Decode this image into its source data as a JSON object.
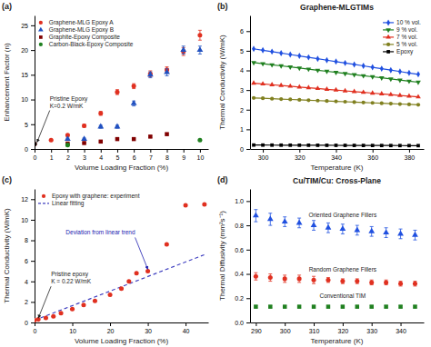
{
  "chart_data": [
    {
      "type": "scatter",
      "label": "(a)",
      "xlabel": "Volume Loading Fraction (%)",
      "ylabel": "Enhancement Factor (n)",
      "xlim": [
        0,
        10.5
      ],
      "ylim": [
        0,
        27
      ],
      "xticks": [
        0,
        1,
        2,
        3,
        4,
        5,
        6,
        7,
        8,
        9,
        10
      ],
      "yticks": [
        0,
        5,
        10,
        15,
        20,
        25
      ],
      "grid": false,
      "legend": "upper left",
      "series": [
        {
          "name": "Graphene-MLG Epoxy A",
          "color": "#e03020",
          "marker": "circle",
          "x": [
            0,
            1,
            2,
            3,
            4,
            5,
            6,
            7,
            8,
            9,
            10
          ],
          "values": [
            1,
            1.8,
            2.8,
            4.7,
            7.2,
            11.5,
            12.7,
            15.2,
            16.0,
            19.7,
            23.0
          ],
          "yerr": [
            0,
            0.15,
            0.2,
            0.3,
            0.4,
            0.5,
            0.5,
            0.6,
            0.6,
            0.8,
            1.0
          ]
        },
        {
          "name": "Graphene-MLG Epoxy B",
          "color": "#2050c0",
          "marker": "triangle",
          "x": [
            2,
            3,
            4,
            5,
            6,
            7,
            8,
            9,
            10
          ],
          "values": [
            2.0,
            2.0,
            4.5,
            4.5,
            9.2,
            15.0,
            15.5,
            20.0,
            20.0
          ],
          "yerr": [
            0.2,
            0.2,
            0.3,
            0.3,
            0.5,
            0.6,
            0.7,
            0.8,
            0.8
          ]
        },
        {
          "name": "Graphite-Epoxy Composite",
          "color": "#800000",
          "marker": "square",
          "x": [
            2,
            3,
            4,
            5,
            6,
            7,
            8
          ],
          "values": [
            1.1,
            1.2,
            1.5,
            2.0,
            2.0,
            2.5,
            3.0
          ],
          "yerr": [
            0.1,
            0.1,
            0.15,
            0.15,
            0.15,
            0.2,
            0.2
          ]
        },
        {
          "name": "Carbon-Black-Epoxy Composite",
          "color": "#208020",
          "marker": "circle",
          "x": [
            2,
            10
          ],
          "values": [
            0.8,
            1.8
          ],
          "yerr": [
            0.1,
            0.15
          ]
        },
        {
          "color": "#000000",
          "marker": "circle",
          "x": [
            0
          ],
          "values": [
            1
          ]
        }
      ],
      "annotations": [
        {
          "text": "Pristine Epoxy\nK=0.2 W/mK",
          "x": 0.15,
          "y": 1.0
        }
      ]
    },
    {
      "type": "line",
      "label": "(b)",
      "title": "Graphene-MLGTIMs",
      "xlabel": "Temperature (K)",
      "ylabel": "Thermal Conductivity (W/mK)",
      "xlim": [
        293,
        388
      ],
      "ylim": [
        0,
        6.8
      ],
      "xticks": [
        300,
        320,
        340,
        360,
        380
      ],
      "yticks": [
        0,
        1,
        2,
        3,
        4,
        5,
        6
      ],
      "grid": false,
      "legend": "upper right",
      "x": [
        295,
        300,
        305,
        310,
        315,
        320,
        325,
        330,
        335,
        340,
        345,
        350,
        355,
        360,
        365,
        370,
        375,
        380,
        385
      ],
      "series": [
        {
          "name": "10 % vol.",
          "color": "#2050e0",
          "marker": "diamond",
          "values": [
            5.1,
            5.0278,
            4.9556,
            4.8833,
            4.8111,
            4.7389,
            4.6667,
            4.5944,
            4.5222,
            4.45,
            4.3778,
            4.3056,
            4.2333,
            4.1611,
            4.0889,
            4.0167,
            3.9444,
            3.8722,
            3.8
          ]
        },
        {
          "name": "9 % vol.",
          "color": "#208020",
          "marker": "triangle-down",
          "values": [
            4.4,
            4.3444,
            4.2889,
            4.2333,
            4.1778,
            4.1222,
            4.0667,
            4.0111,
            3.9556,
            3.9,
            3.8444,
            3.7889,
            3.7333,
            3.6778,
            3.6222,
            3.5667,
            3.5111,
            3.4556,
            3.4
          ]
        },
        {
          "name": "7 % vol.",
          "color": "#e03020",
          "marker": "triangle",
          "values": [
            3.35,
            3.3111,
            3.2722,
            3.2333,
            3.1944,
            3.1556,
            3.1167,
            3.0778,
            3.0389,
            3.0,
            2.9611,
            2.9222,
            2.8833,
            2.8444,
            2.8056,
            2.7667,
            2.7278,
            2.6889,
            2.65
          ]
        },
        {
          "name": "5 % vol.",
          "color": "#808020",
          "marker": "circle",
          "values": [
            2.6,
            2.5806,
            2.5611,
            2.5417,
            2.5222,
            2.5028,
            2.4833,
            2.4639,
            2.4444,
            2.425,
            2.4056,
            2.3861,
            2.3667,
            2.3472,
            2.3278,
            2.3083,
            2.2889,
            2.2694,
            2.25
          ]
        },
        {
          "name": "Epoxy",
          "color": "#000000",
          "marker": "square",
          "values": [
            0.2,
            0.1983,
            0.1967,
            0.195,
            0.1933,
            0.1917,
            0.19,
            0.1883,
            0.1867,
            0.185,
            0.1833,
            0.1817,
            0.18,
            0.1783,
            0.1767,
            0.175,
            0.1733,
            0.1717,
            0.17
          ]
        }
      ]
    },
    {
      "type": "scatter",
      "label": "(c)",
      "xlabel": "Volume Loading Fraction (%)",
      "ylabel": "Thermal Conductivity (W/mK)",
      "xlim": [
        0,
        46
      ],
      "ylim": [
        0,
        13
      ],
      "xticks": [
        0,
        10,
        20,
        30,
        40
      ],
      "yticks": [
        0,
        2,
        4,
        6,
        8,
        10,
        12
      ],
      "grid": false,
      "legend": "upper left",
      "series": [
        {
          "name": "Epoxy with graphene: experiment",
          "color": "#e03020",
          "marker": "circle",
          "x": [
            0,
            1,
            3,
            5,
            7,
            10,
            13,
            16,
            20,
            23,
            25,
            27,
            30,
            35,
            40,
            45
          ],
          "values": [
            0.22,
            0.3,
            0.45,
            0.6,
            0.9,
            1.3,
            1.7,
            2.1,
            2.7,
            3.3,
            4.0,
            4.8,
            5.0,
            7.6,
            11.4,
            11.5
          ]
        },
        {
          "name": "Linear fitting",
          "type": "line",
          "color": "#4040c0",
          "line_style": "dashed",
          "x": [
            0,
            45
          ],
          "values": [
            0.22,
            6.6
          ]
        }
      ],
      "annotations": [
        {
          "text": "Pristine epoxy\nK = 0.22 W/mK",
          "x": 1,
          "y": 0.25
        },
        {
          "text": "Deviation from linear trend",
          "x": 30,
          "y": 5.0,
          "color": "#2020b0"
        }
      ]
    },
    {
      "type": "scatter",
      "label": "(d)",
      "title": "Cu/TIM/Cu: Cross-Plane",
      "xlabel": "Temperature (K)",
      "ylabel": "Thermal Diffusivity (mm²s⁻¹)",
      "xlim": [
        288,
        348
      ],
      "ylim": [
        0,
        1.1
      ],
      "xticks": [
        290,
        300,
        310,
        320,
        330,
        340
      ],
      "yticks": [
        {
          "value": 0,
          "label": "0.0"
        },
        0.2,
        0.4,
        0.6,
        0.8,
        {
          "value": 1,
          "label": "1.0"
        }
      ],
      "grid": false,
      "series": [
        {
          "name": "Oriented Graphene Fillers",
          "color": "#2050e0",
          "marker": "triangle",
          "x": [
            290,
            295,
            300,
            305,
            310,
            315,
            320,
            325,
            330,
            335,
            340,
            345
          ],
          "values": [
            0.88,
            0.85,
            0.83,
            0.82,
            0.8,
            0.78,
            0.77,
            0.76,
            0.75,
            0.74,
            0.73,
            0.72
          ],
          "yerr": [
            0.05,
            0.05,
            0.04,
            0.04,
            0.04,
            0.04,
            0.04,
            0.04,
            0.04,
            0.04,
            0.04,
            0.04
          ]
        },
        {
          "name": "Random Graphene Fillers",
          "color": "#e03020",
          "marker": "circle",
          "x": [
            290,
            295,
            300,
            305,
            310,
            315,
            320,
            325,
            330,
            335,
            340,
            345
          ],
          "values": [
            0.38,
            0.37,
            0.36,
            0.36,
            0.35,
            0.35,
            0.34,
            0.34,
            0.33,
            0.33,
            0.32,
            0.32
          ],
          "yerr": [
            0.03,
            0.03,
            0.03,
            0.03,
            0.03,
            0.02,
            0.02,
            0.02,
            0.02,
            0.02,
            0.02,
            0.02
          ]
        },
        {
          "name": "Conventional TIM",
          "color": "#208020",
          "marker": "square",
          "x": [
            290,
            295,
            300,
            305,
            310,
            315,
            320,
            325,
            330,
            335,
            340,
            345
          ],
          "values": [
            0.13,
            0.13,
            0.13,
            0.13,
            0.13,
            0.13,
            0.13,
            0.13,
            0.13,
            0.13,
            0.13,
            0.13
          ],
          "yerr": [
            0.01,
            0.01,
            0.01,
            0.01,
            0.01,
            0.01,
            0.01,
            0.01,
            0.01,
            0.01,
            0.01,
            0.01
          ]
        }
      ]
    }
  ]
}
